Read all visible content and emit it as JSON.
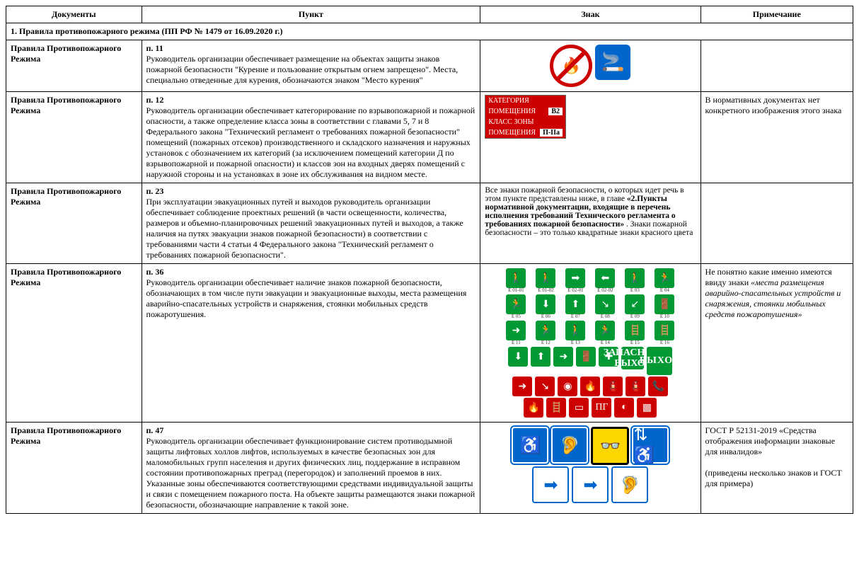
{
  "headers": {
    "doc": "Документы",
    "punkt": "Пункт",
    "znak": "Знак",
    "note": "Примечание"
  },
  "section_title": "1.  Правила противопожарного режима (ПП РФ № 1479 от 16.09.2020 г.)",
  "doc_name": "Правила Противопожарного Режима",
  "rows": [
    {
      "pnum": "п. 11",
      "ptext": "Руководитель организации обеспечивает размещение на объектах защиты знаков пожарной безопасности \"Курение и пользование открытым огнем запрещено\". Места, специально отведенные для курения, обозначаются знаком \"Место курения\"",
      "note": ""
    },
    {
      "pnum": "п. 12",
      "ptext": "Руководитель организации обеспечивает категорирование по взрывопожарной и пожарной опасности, а также определение класса зоны в соответствии с главами 5, 7 и 8 Федерального закона \"Технический регламент о требованиях пожарной безопасности\" помещений (пожарных отсеков) производственного и складского назначения и наружных установок с обозначением их категорий (за исключением помещений категории Д по взрывопожарной и пожарной опасности) и классов зон на входных дверях помещений с наружной стороны и на установках в зоне их обслуживания на видном месте.",
      "note": "В нормативных документах нет конкретного изображения этого знака",
      "cat_labels": {
        "l1": "КАТЕГОРИЯ",
        "l2": "ПОМЕЩЕНИЯ",
        "v1": "В2",
        "l3": "КЛАСС ЗОНЫ",
        "l4": "ПОМЕЩЕНИЯ",
        "v2": "П-IIа"
      }
    },
    {
      "pnum": "п. 23",
      "ptext": "При эксплуатации эвакуационных путей и выходов руководитель организации обеспечивает соблюдение проектных решений (в части освещенности, количества, размеров и объемно-планировочных решений эвакуационных путей и выходов, а также наличия на путях эвакуации знаков пожарной безопасности) в соответствии с требованиями части 4 статьи 4 Федерального закона \"Технический регламент о требованиях пожарной безопасности\".",
      "znak_text_pre": "Все знаки пожарной безопасности, о которых идет речь в этом пункте представлены ниже, в главе ",
      "znak_text_bold": "«2.Пункты нормативной документации, входящие в перечень исполнения требований Технического регламента о требованиях пожарной безопасности»",
      "znak_text_post": ". Знаки пожарной безопасности – это только квадратные знаки красного цвета",
      "note": ""
    },
    {
      "pnum": "п. 36",
      "ptext": "Руководитель организации обеспечивает наличие знаков пожарной безопасности, обозначающих в том числе пути эвакуации и эвакуационные выходы, места размещения аварийно-спасательных устройств и снаряжения, стоянки мобильных средств пожаротушения.",
      "note_pre": "Не понятно какие именно имеются ввиду знаки ",
      "note_it": "«места размещения аварийно-спасательных устройств и снаряжения, стоянки мобильных средств пожаротушения»",
      "evac_labels": [
        "E 01-01",
        "E 01-02",
        "E 02-01",
        "E 02-02",
        "E 03",
        "E 04",
        "E 05",
        "E 06",
        "E 07",
        "E 08",
        "E 09",
        "E 10",
        "E 11",
        "E 12",
        "E 13",
        "E 14",
        "E 15",
        "E 16"
      ],
      "vyhod": "ВЫХОД",
      "zapas": "ЗАПАСНЫЙ ВЫХОД"
    },
    {
      "pnum": "п. 47",
      "ptext": "Руководитель организации обеспечивает функционирование систем противодымной защиты лифтовых холлов лифтов, используемых в качестве безопасных зон для маломобильных групп населения и других физических лиц, поддержание в исправном состоянии противопожарных преград (перегородок) и заполнений проемов в них. Указанные зоны обеспечиваются соответствующими средствами индивидуальной защиты и связи с помещением пожарного поста. На объекте защиты размещаются знаки пожарной безопасности, обозначающие направление к такой зоне.",
      "note_l1": "ГОСТ Р 52131-2019 «Средства отображения информации знаковые для инвалидов»",
      "note_l2": "(приведены несколько знаков и ГОСТ для примера)"
    }
  ],
  "colors": {
    "green": "#009933",
    "red": "#cc0000",
    "blue": "#0066cc",
    "yellow": "#ffd700"
  }
}
